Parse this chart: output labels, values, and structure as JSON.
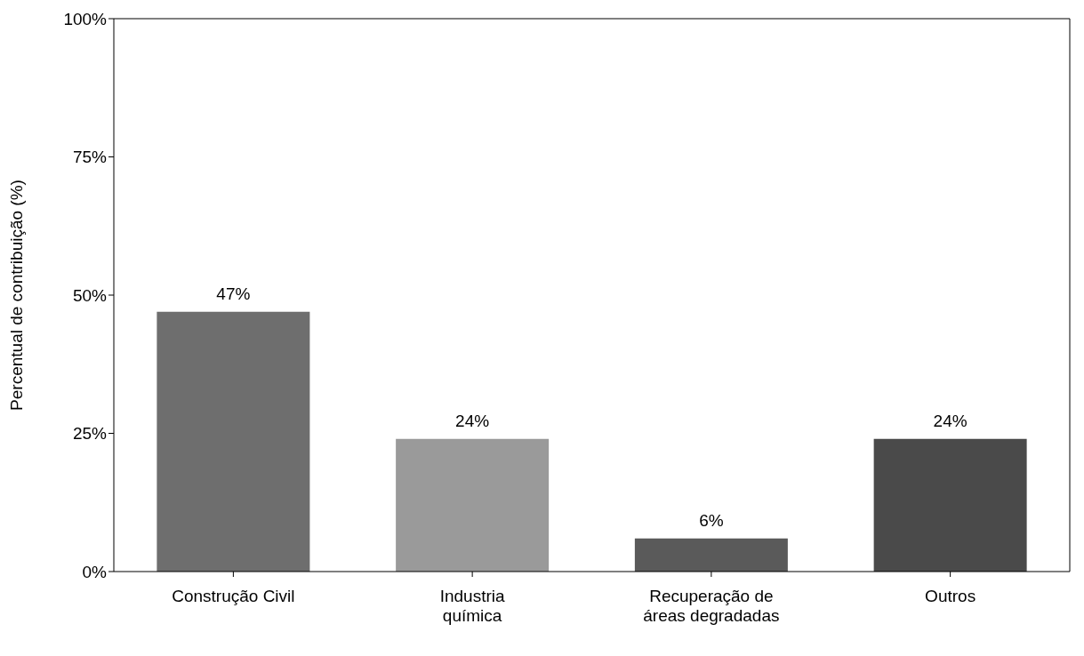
{
  "chart_data": {
    "type": "bar",
    "ylabel": "Percentual de contribuição (%)",
    "categories": [
      "Construção Civil",
      "Industria química",
      "Recuperação de áreas degradadas",
      "Outros"
    ],
    "values": [
      47,
      24,
      6,
      24
    ],
    "value_labels": [
      "47%",
      "24%",
      "6%",
      "24%"
    ],
    "colors": [
      "#6e6e6e",
      "#9a9a9a",
      "#5a5a5a",
      "#4a4a4a"
    ],
    "ylim": [
      0,
      100
    ],
    "yticks": [
      {
        "value": 0,
        "label": "0%"
      },
      {
        "value": 25,
        "label": "25%"
      },
      {
        "value": 50,
        "label": "50%"
      },
      {
        "value": 75,
        "label": "75%"
      },
      {
        "value": 100,
        "label": "100%"
      }
    ],
    "grid": false
  }
}
